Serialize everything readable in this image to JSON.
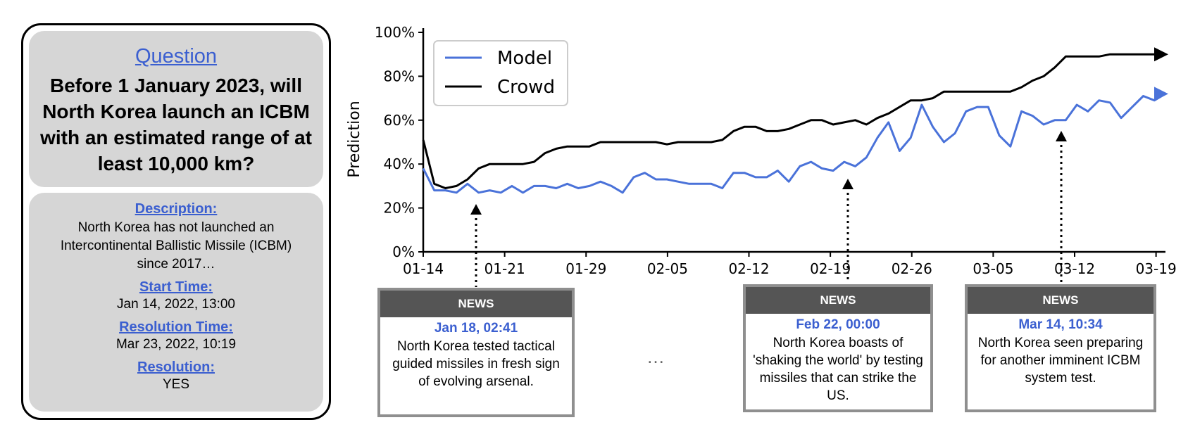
{
  "question": {
    "heading": "Question",
    "text": "Before 1 January 2023, will North Korea launch an ICBM with an estimated range of at least 10,000 km?",
    "description_label": "Description:",
    "description": "North Korea has not launched an Intercontinental Ballistic Missile (ICBM) since 2017…",
    "start_time_label": "Start Time:",
    "start_time": "Jan 14, 2022, 13:00",
    "resolution_time_label": "Resolution Time:",
    "resolution_time": "Mar 23, 2022, 10:19",
    "resolution_label": "Resolution:",
    "resolution": "YES"
  },
  "chart_data": {
    "type": "line",
    "ylabel": "Prediction",
    "xlabel": "",
    "x_tick_labels": [
      "01-14",
      "01-21",
      "01-29",
      "02-05",
      "02-12",
      "02-19",
      "02-26",
      "03-05",
      "03-12",
      "03-19"
    ],
    "y_tick_labels": [
      "0%",
      "20%",
      "40%",
      "60%",
      "80%",
      "100%"
    ],
    "ylim": [
      0,
      100
    ],
    "legend_placement": "top-left",
    "grid": false,
    "series": [
      {
        "name": "Model",
        "color": "#4a72d9",
        "values": [
          38,
          28,
          28,
          27,
          31,
          27,
          28,
          27,
          30,
          27,
          30,
          30,
          29,
          31,
          29,
          30,
          32,
          30,
          27,
          34,
          36,
          33,
          33,
          32,
          31,
          31,
          31,
          29,
          36,
          36,
          34,
          34,
          37,
          32,
          39,
          41,
          38,
          37,
          41,
          39,
          43,
          52,
          59,
          46,
          52,
          67,
          57,
          50,
          54,
          64,
          66,
          66,
          53,
          48,
          64,
          62,
          58,
          60,
          60,
          67,
          64,
          69,
          68,
          61,
          66,
          71,
          69,
          72
        ]
      },
      {
        "name": "Crowd",
        "color": "#000000",
        "values": [
          51,
          31,
          29,
          30,
          33,
          38,
          40,
          40,
          40,
          40,
          41,
          45,
          47,
          48,
          48,
          48,
          50,
          50,
          50,
          50,
          50,
          50,
          49,
          50,
          50,
          50,
          50,
          51,
          55,
          57,
          57,
          55,
          55,
          56,
          58,
          60,
          60,
          58,
          59,
          60,
          58,
          61,
          63,
          66,
          69,
          69,
          70,
          73,
          73,
          73,
          73,
          73,
          73,
          73,
          75,
          78,
          80,
          84,
          89,
          89,
          89,
          89,
          90,
          90,
          90,
          90,
          90,
          90
        ]
      }
    ]
  },
  "news": [
    {
      "header": "NEWS",
      "date": "Jan 18, 02:41",
      "text": "North Korea tested tactical guided missiles in fresh sign of evolving arsenal."
    },
    {
      "header": "NEWS",
      "date": "Feb 22, 00:00",
      "text": "North Korea boasts of 'shaking the world' by testing missiles that can strike the US."
    },
    {
      "header": "NEWS",
      "date": "Mar 14, 10:34",
      "text": "North Korea seen preparing for another imminent ICBM system test."
    }
  ],
  "ellipsis": "…",
  "colors": {
    "accent": "#3b5fd0",
    "panel_gray": "#d6d6d6",
    "news_header": "#555555",
    "news_border": "#8f8f8f"
  }
}
